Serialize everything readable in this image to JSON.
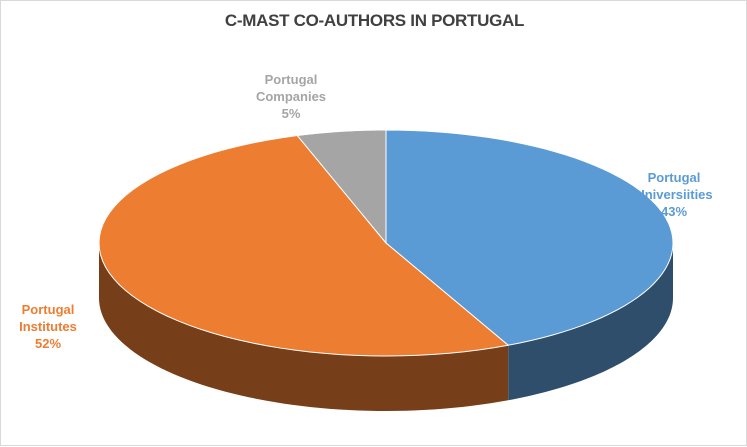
{
  "chart_data": {
    "type": "pie3d",
    "title": "C-MAST CO-AUTHORS IN PORTUGAL",
    "categories": [
      "Portugal Universiities",
      "Portugal Institutes",
      "Portugal Companies"
    ],
    "values": [
      43,
      52,
      5
    ],
    "value_labels": [
      "43%",
      "52%",
      "5%"
    ],
    "colors": [
      "#5b9bd5",
      "#ed7d31",
      "#a5a5a5"
    ]
  }
}
